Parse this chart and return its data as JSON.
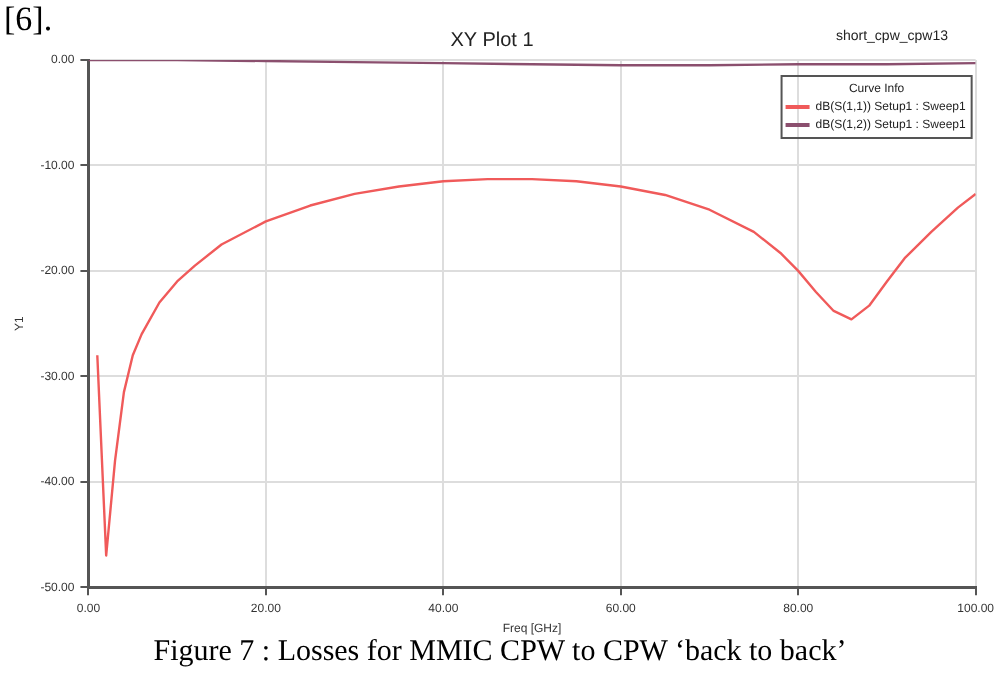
{
  "chart_data": {
    "type": "line",
    "title": "XY Plot 1",
    "xlabel": "Freq [GHz]",
    "ylabel": "Y1",
    "legend_title": "Curve Info",
    "annotations": [
      "[6].",
      "short_cpw_cpw13",
      "Figure 7 : Losses for MMIC CPW to CPW ‘back to back’"
    ],
    "xlim": [
      0,
      100
    ],
    "xticks": [
      {
        "value": 0,
        "label": "0.00"
      },
      {
        "value": 20,
        "label": "20.00"
      },
      {
        "value": 40,
        "label": "40.00"
      },
      {
        "value": 60,
        "label": "60.00"
      },
      {
        "value": 80,
        "label": "80.00"
      },
      {
        "value": 100,
        "label": "100.00"
      }
    ],
    "ylim": [
      -50,
      0
    ],
    "yticks": [
      {
        "value": -50,
        "label": "-50.00"
      },
      {
        "value": -40,
        "label": "-40.00"
      },
      {
        "value": -30,
        "label": "-30.00"
      },
      {
        "value": -20,
        "label": "-20.00"
      },
      {
        "value": -10,
        "label": "-10.00"
      },
      {
        "value": 0,
        "label": "0.00"
      }
    ],
    "grid": true,
    "legend": "top right",
    "marker": "none",
    "line_style": "solid",
    "series": [
      {
        "name": "dB(S(1,1)) Setup1 : Sweep1",
        "color": "#f05a5a",
        "x": [
          1,
          2,
          3,
          4,
          5,
          6,
          8,
          10,
          12,
          15,
          20,
          25,
          30,
          35,
          40,
          45,
          50,
          55,
          60,
          65,
          70,
          75,
          78,
          80,
          82,
          84,
          86,
          88,
          90,
          92,
          95,
          98,
          100
        ],
        "values": [
          -28,
          -47,
          -38,
          -31.5,
          -28,
          -26,
          -23,
          -21,
          -19.5,
          -17.5,
          -15.3,
          -13.8,
          -12.7,
          -12,
          -11.5,
          -11.3,
          -11.3,
          -11.5,
          -12,
          -12.8,
          -14.2,
          -16.3,
          -18.3,
          -20,
          -22,
          -23.8,
          -24.6,
          -23.3,
          -21,
          -18.8,
          -16.3,
          -14,
          -12.7
        ]
      },
      {
        "name": "dB(S(1,2)) Setup1 : Sweep1",
        "color": "#8b4f6e",
        "x": [
          0,
          10,
          20,
          30,
          40,
          50,
          60,
          70,
          80,
          90,
          100
        ],
        "values": [
          0,
          0,
          -0.1,
          -0.2,
          -0.3,
          -0.4,
          -0.5,
          -0.5,
          -0.4,
          -0.4,
          -0.3
        ]
      }
    ]
  }
}
